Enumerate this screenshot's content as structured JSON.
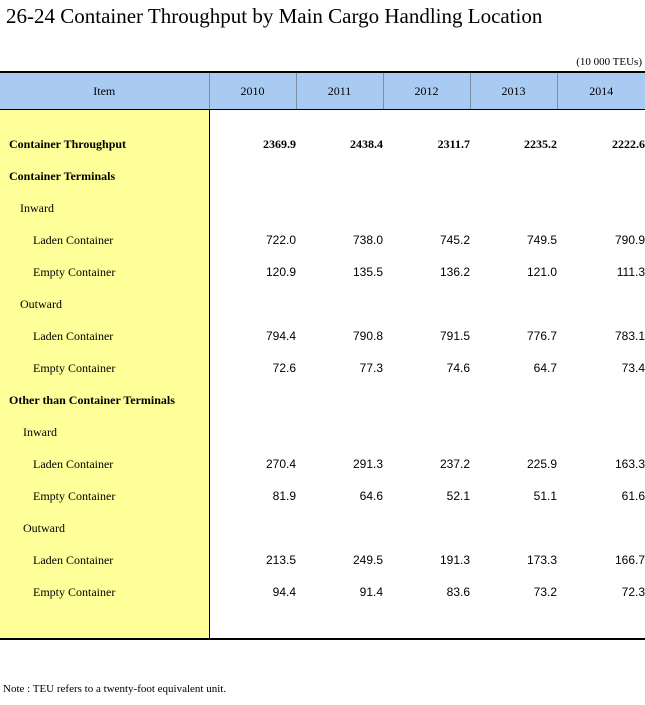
{
  "title": "26-24  Container Throughput by Main Cargo Handling Location",
  "unit": "(10 000 TEUs)",
  "header": {
    "item": "Item",
    "years": [
      "2010",
      "2011",
      "2012",
      "2013",
      "2014"
    ]
  },
  "rows": [
    {
      "label": "Container Throughput",
      "values": [
        "2369.9",
        "2438.4",
        "2311.7",
        "2235.2",
        "2222.6"
      ]
    },
    {
      "label": "Container Terminals",
      "values": [
        "",
        "",
        "",
        "",
        ""
      ]
    },
    {
      "label": "Inward",
      "values": [
        "",
        "",
        "",
        "",
        ""
      ]
    },
    {
      "label": "Laden Container",
      "values": [
        "722.0",
        "738.0",
        "745.2",
        "749.5",
        "790.9"
      ]
    },
    {
      "label": "Empty Container",
      "values": [
        "120.9",
        "135.5",
        "136.2",
        "121.0",
        "111.3"
      ]
    },
    {
      "label": "Outward",
      "values": [
        "",
        "",
        "",
        "",
        ""
      ]
    },
    {
      "label": "Laden Container",
      "values": [
        "794.4",
        "790.8",
        "791.5",
        "776.7",
        "783.1"
      ]
    },
    {
      "label": "Empty Container",
      "values": [
        "72.6",
        "77.3",
        "74.6",
        "64.7",
        "73.4"
      ]
    },
    {
      "label": "Other than Container Terminals",
      "values": [
        "",
        "",
        "",
        "",
        ""
      ]
    },
    {
      "label": "Inward",
      "values": [
        "",
        "",
        "",
        "",
        ""
      ]
    },
    {
      "label": "Laden Container",
      "values": [
        "270.4",
        "291.3",
        "237.2",
        "225.9",
        "163.3"
      ]
    },
    {
      "label": "Empty Container",
      "values": [
        "81.9",
        "64.6",
        "52.1",
        "51.1",
        "61.6"
      ]
    },
    {
      "label": "Outward",
      "values": [
        "",
        "",
        "",
        "",
        ""
      ]
    },
    {
      "label": "Laden Container",
      "values": [
        "213.5",
        "249.5",
        "191.3",
        "173.3",
        "166.7"
      ]
    },
    {
      "label": "Empty Container",
      "values": [
        "94.4",
        "91.4",
        "83.6",
        "73.2",
        "72.3"
      ]
    }
  ],
  "note": "Note : TEU refers to a twenty-foot equivalent unit."
}
